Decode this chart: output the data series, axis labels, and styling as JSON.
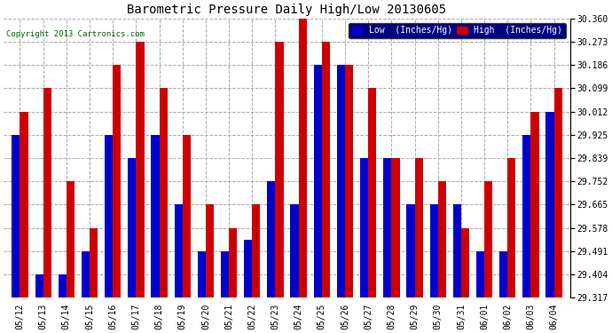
{
  "title": "Barometric Pressure Daily High/Low 20130605",
  "copyright": "Copyright 2013 Cartronics.com",
  "legend_low": "Low  (Inches/Hg)",
  "legend_high": "High  (Inches/Hg)",
  "background_color": "#ffffff",
  "plot_bg_color": "#ffffff",
  "low_color": "#0000cc",
  "high_color": "#cc0000",
  "ylim_min": 29.317,
  "ylim_max": 30.36,
  "yticks": [
    29.317,
    29.404,
    29.491,
    29.578,
    29.665,
    29.752,
    29.839,
    29.925,
    30.012,
    30.099,
    30.186,
    30.273,
    30.36
  ],
  "dates": [
    "05/12",
    "05/13",
    "05/14",
    "05/15",
    "05/16",
    "05/17",
    "05/18",
    "05/19",
    "05/20",
    "05/21",
    "05/22",
    "05/23",
    "05/24",
    "05/25",
    "05/26",
    "05/27",
    "05/28",
    "05/29",
    "05/30",
    "05/31",
    "06/01",
    "06/02",
    "06/03",
    "06/04"
  ],
  "low_values": [
    29.925,
    29.404,
    29.404,
    29.491,
    29.925,
    29.839,
    29.925,
    29.665,
    29.491,
    29.491,
    29.534,
    29.752,
    29.665,
    30.186,
    30.186,
    29.839,
    29.839,
    29.665,
    29.665,
    29.665,
    29.491,
    29.491,
    29.925,
    30.012
  ],
  "high_values": [
    30.012,
    30.099,
    29.752,
    29.578,
    30.186,
    30.273,
    30.099,
    29.925,
    29.665,
    29.578,
    29.665,
    30.273,
    30.36,
    30.273,
    30.186,
    30.099,
    29.839,
    29.839,
    29.752,
    29.578,
    29.752,
    29.839,
    30.012,
    30.099
  ],
  "bar_width": 0.35,
  "figsize": [
    6.9,
    3.75
  ],
  "dpi": 100,
  "title_fontsize": 10,
  "tick_fontsize": 7
}
